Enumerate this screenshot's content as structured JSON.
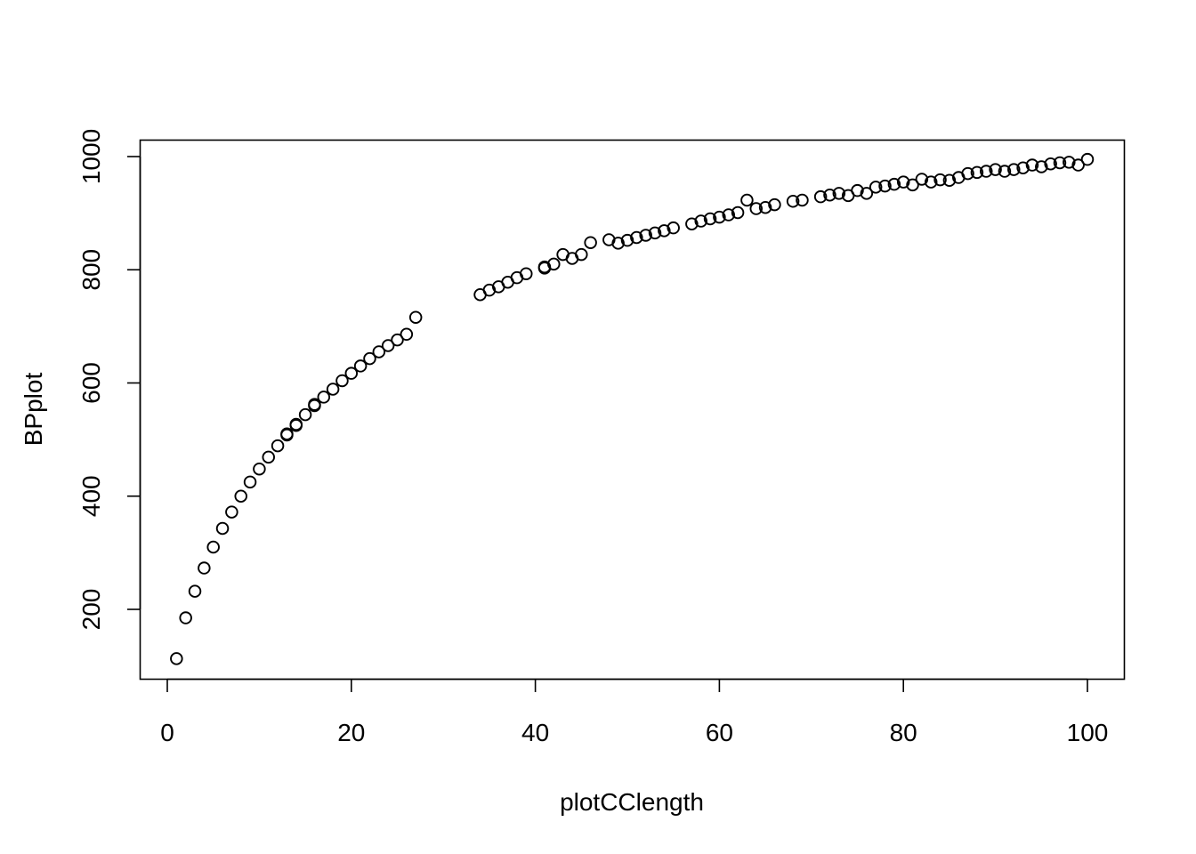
{
  "chart_data": {
    "type": "scatter",
    "title": "",
    "xlabel": "plotCClength",
    "ylabel": "BPplot",
    "xlim": [
      0,
      100
    ],
    "ylim": [
      100,
      1000
    ],
    "grid": false,
    "xticks": [
      0,
      20,
      40,
      60,
      80,
      100
    ],
    "yticks": [
      200,
      400,
      600,
      800,
      1000
    ],
    "point_color": "#000000",
    "series": [
      {
        "marker": "open-circle",
        "points": [
          [
            1,
            113
          ],
          [
            2,
            185
          ],
          [
            3,
            232
          ],
          [
            4,
            273
          ],
          [
            5,
            310
          ],
          [
            6,
            343
          ],
          [
            7,
            372
          ],
          [
            8,
            400
          ],
          [
            9,
            425
          ],
          [
            10,
            448
          ],
          [
            11,
            469
          ],
          [
            12,
            489
          ],
          [
            13,
            508
          ],
          [
            13,
            510
          ],
          [
            14,
            525
          ],
          [
            14,
            527
          ],
          [
            15,
            544
          ],
          [
            16,
            560
          ],
          [
            16,
            562
          ],
          [
            17,
            575
          ],
          [
            18,
            589
          ],
          [
            19,
            604
          ],
          [
            20,
            617
          ],
          [
            21,
            630
          ],
          [
            22,
            643
          ],
          [
            23,
            655
          ],
          [
            24,
            666
          ],
          [
            25,
            676
          ],
          [
            26,
            686
          ],
          [
            27,
            716
          ],
          [
            34,
            756
          ],
          [
            35,
            764
          ],
          [
            36,
            770
          ],
          [
            37,
            778
          ],
          [
            38,
            786
          ],
          [
            39,
            793
          ],
          [
            41,
            803
          ],
          [
            41,
            805
          ],
          [
            42,
            810
          ],
          [
            43,
            827
          ],
          [
            44,
            820
          ],
          [
            45,
            827
          ],
          [
            46,
            848
          ],
          [
            48,
            853
          ],
          [
            49,
            847
          ],
          [
            50,
            852
          ],
          [
            51,
            857
          ],
          [
            52,
            861
          ],
          [
            53,
            865
          ],
          [
            54,
            869
          ],
          [
            55,
            874
          ],
          [
            57,
            881
          ],
          [
            58,
            886
          ],
          [
            59,
            890
          ],
          [
            60,
            893
          ],
          [
            61,
            897
          ],
          [
            62,
            901
          ],
          [
            63,
            923
          ],
          [
            64,
            908
          ],
          [
            65,
            910
          ],
          [
            66,
            915
          ],
          [
            68,
            921
          ],
          [
            69,
            923
          ],
          [
            71,
            929
          ],
          [
            72,
            932
          ],
          [
            73,
            935
          ],
          [
            74,
            931
          ],
          [
            75,
            940
          ],
          [
            76,
            935
          ],
          [
            77,
            946
          ],
          [
            78,
            948
          ],
          [
            79,
            951
          ],
          [
            80,
            955
          ],
          [
            81,
            950
          ],
          [
            82,
            960
          ],
          [
            83,
            955
          ],
          [
            84,
            959
          ],
          [
            85,
            958
          ],
          [
            86,
            963
          ],
          [
            87,
            970
          ],
          [
            88,
            972
          ],
          [
            89,
            974
          ],
          [
            90,
            977
          ],
          [
            91,
            974
          ],
          [
            92,
            977
          ],
          [
            93,
            980
          ],
          [
            94,
            985
          ],
          [
            95,
            982
          ],
          [
            96,
            987
          ],
          [
            97,
            989
          ],
          [
            98,
            990
          ],
          [
            99,
            985
          ],
          [
            100,
            995
          ]
        ]
      }
    ]
  }
}
